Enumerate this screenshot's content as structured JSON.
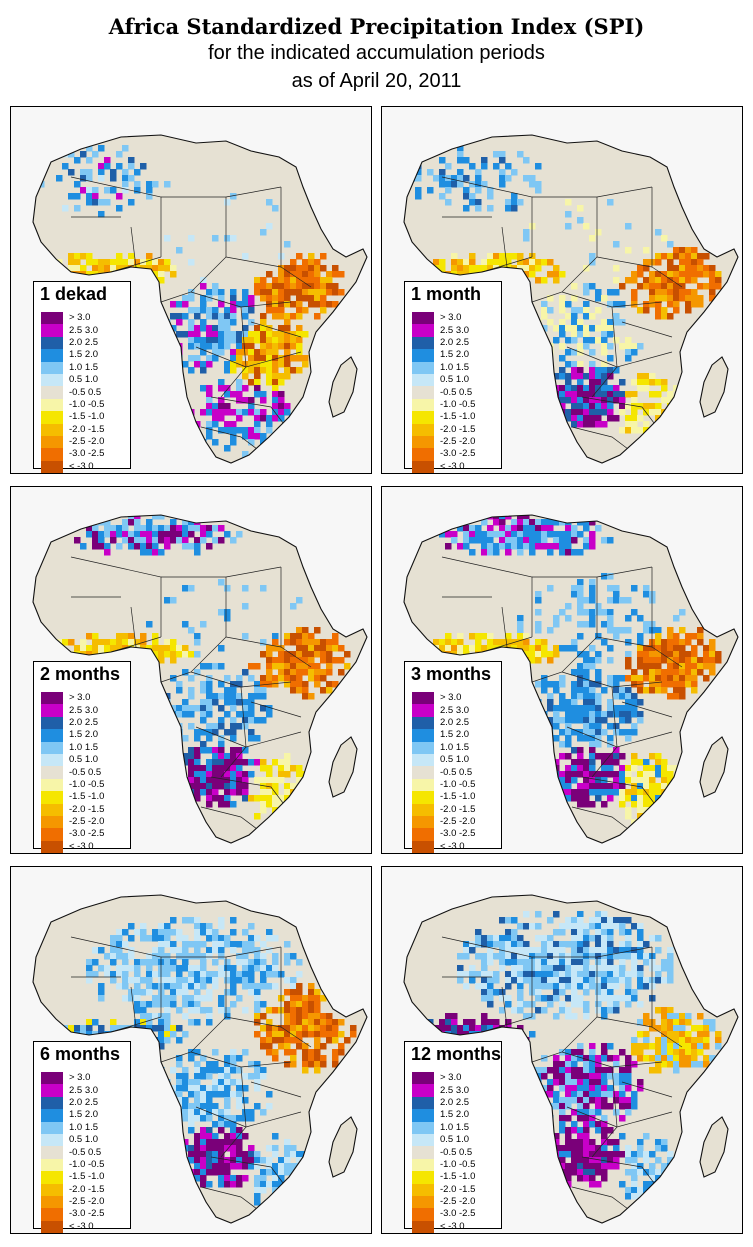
{
  "title": "Africa Standardized Precipitation Index (SPI)",
  "subtitle1": "for the indicated accumulation periods",
  "subtitle2": "as of April 20, 2011",
  "legend_classes": [
    {
      "label": "> 3.0",
      "color": "#7a0079"
    },
    {
      "label": "2.5  3.0",
      "color": "#c800c8"
    },
    {
      "label": "2.0  2.5",
      "color": "#1f5fa8"
    },
    {
      "label": "1.5  2.0",
      "color": "#1f8ee0"
    },
    {
      "label": "1.0  1.5",
      "color": "#7fc7f4"
    },
    {
      "label": "0.5  1.0",
      "color": "#c6e7f7"
    },
    {
      "label": "-0.5  0.5",
      "color": "#e6e1d3"
    },
    {
      "label": "-1.0 -0.5",
      "color": "#f7f5a8"
    },
    {
      "label": "-1.5 -1.0",
      "color": "#f5e600"
    },
    {
      "label": "-2.0 -1.5",
      "color": "#f5bd00"
    },
    {
      "label": "-2.5 -2.0",
      "color": "#f59700"
    },
    {
      "label": "-3.0 -2.5",
      "color": "#f06e00"
    },
    {
      "label": "< -3.0",
      "color": "#c85000"
    }
  ],
  "panels": [
    {
      "label": "1 dekad",
      "pattern": "dekad"
    },
    {
      "label": "1 month",
      "pattern": "month1"
    },
    {
      "label": "2 months",
      "pattern": "month2"
    },
    {
      "label": "3 months",
      "pattern": "month3"
    },
    {
      "label": "6 months",
      "pattern": "month6"
    },
    {
      "label": "12 months",
      "pattern": "month12"
    }
  ]
}
